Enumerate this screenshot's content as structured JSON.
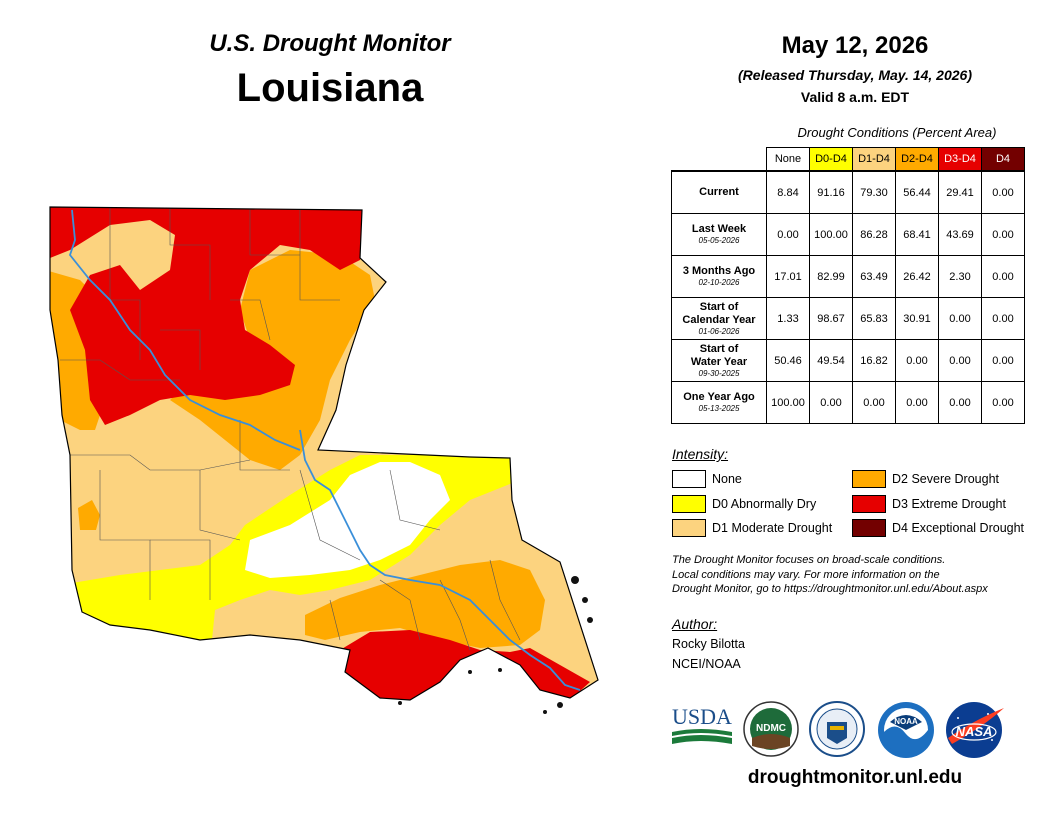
{
  "header": {
    "subtitle": "U.S. Drought Monitor",
    "title": "Louisiana"
  },
  "date_block": {
    "date": "May 12, 2026",
    "released": "(Released Thursday, May. 14, 2026)",
    "valid": "Valid 8 a.m. EDT"
  },
  "table": {
    "caption": "Drought Conditions (Percent Area)",
    "columns": [
      "None",
      "D0-D4",
      "D1-D4",
      "D2-D4",
      "D3-D4",
      "D4"
    ],
    "rows": [
      {
        "label": "Current",
        "label2": "",
        "date": "",
        "values": [
          "8.84",
          "91.16",
          "79.30",
          "56.44",
          "29.41",
          "0.00"
        ]
      },
      {
        "label": "Last Week",
        "label2": "",
        "date": "05-05-2026",
        "values": [
          "0.00",
          "100.00",
          "86.28",
          "68.41",
          "43.69",
          "0.00"
        ]
      },
      {
        "label": "3 Months Ago",
        "label2": "",
        "date": "02-10-2026",
        "values": [
          "17.01",
          "82.99",
          "63.49",
          "26.42",
          "2.30",
          "0.00"
        ]
      },
      {
        "label": "Start of",
        "label2": "Calendar Year",
        "date": "01-06-2026",
        "values": [
          "1.33",
          "98.67",
          "65.83",
          "30.91",
          "0.00",
          "0.00"
        ]
      },
      {
        "label": "Start of",
        "label2": "Water Year",
        "date": "09-30-2025",
        "values": [
          "50.46",
          "49.54",
          "16.82",
          "0.00",
          "0.00",
          "0.00"
        ]
      },
      {
        "label": "One Year Ago",
        "label2": "",
        "date": "05-13-2025",
        "values": [
          "100.00",
          "0.00",
          "0.00",
          "0.00",
          "0.00",
          "0.00"
        ]
      }
    ]
  },
  "legend": {
    "title": "Intensity:",
    "items": [
      {
        "label": "None",
        "color": "#ffffff"
      },
      {
        "label": "D0 Abnormally Dry",
        "color": "#ffff00"
      },
      {
        "label": "D1 Moderate Drought",
        "color": "#fcd37f"
      },
      {
        "label": "D2 Severe Drought",
        "color": "#ffaa00"
      },
      {
        "label": "D3 Extreme Drought",
        "color": "#e60000"
      },
      {
        "label": "D4 Exceptional Drought",
        "color": "#730000"
      }
    ]
  },
  "note": {
    "line1": "The Drought Monitor focuses on broad-scale conditions.",
    "line2": "Local conditions may vary. For more information on the",
    "line3": "Drought Monitor, go to https://droughtmonitor.unl.edu/About.aspx"
  },
  "author": {
    "title": "Author:",
    "name": "Rocky Bilotta",
    "org": "NCEI/NOAA"
  },
  "logos": {
    "usda": "USDA",
    "ndmc": "NDMC",
    "noaa": "NOAA",
    "nasa": "NASA"
  },
  "url": "droughtmonitor.unl.edu",
  "map": {
    "colors": {
      "none": "#ffffff",
      "d0": "#ffff00",
      "d1": "#fcd37f",
      "d2": "#ffaa00",
      "d3": "#e60000",
      "d4": "#730000",
      "river": "#3a8fd9",
      "county_line": "#555555"
    }
  }
}
